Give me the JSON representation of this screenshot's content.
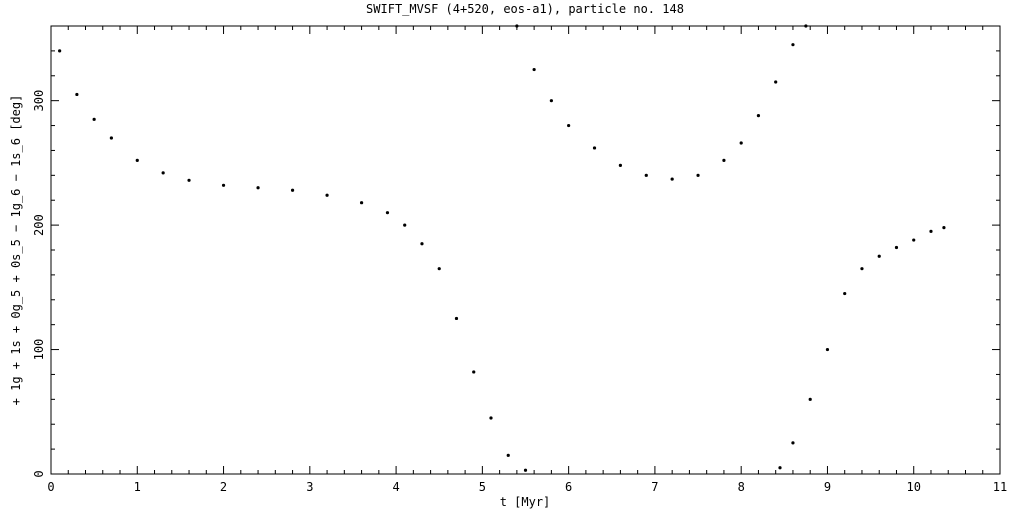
{
  "chart_data": {
    "type": "scatter",
    "title": "SWIFT_MVSF (4+520, eos-a1), particle no. 148",
    "xlabel": "t [Myr]",
    "ylabel": "+ 1g + 1s + 0g_5 + 0s_5 − 1g_6 − 1s_6 [deg]",
    "xlim": [
      0,
      11
    ],
    "ylim": [
      0,
      360
    ],
    "xticks": [
      "0",
      "1",
      "2",
      "3",
      "4",
      "5",
      "6",
      "7",
      "8",
      "9",
      "10",
      "11"
    ],
    "yticks": [
      "0",
      "100",
      "200",
      "300"
    ],
    "grid": false,
    "marker_color": "#000000",
    "series": [
      {
        "x": [
          0.1,
          0.3,
          0.5,
          0.7,
          1.0,
          1.3,
          1.6,
          2.0,
          2.4,
          2.8,
          3.2,
          3.6,
          3.9,
          4.1,
          4.3,
          4.5,
          4.7,
          4.9,
          5.1,
          5.3,
          5.5
        ],
        "y": [
          340,
          305,
          285,
          270,
          252,
          242,
          236,
          232,
          230,
          228,
          224,
          218,
          210,
          200,
          185,
          165,
          125,
          82,
          45,
          15,
          3
        ]
      },
      {
        "x": [
          5.4,
          5.6,
          5.8,
          6.0,
          6.3,
          6.6,
          6.9,
          7.2,
          7.5,
          7.8,
          8.0,
          8.2,
          8.4,
          8.6,
          8.75
        ],
        "y": [
          360,
          325,
          300,
          280,
          262,
          248,
          240,
          237,
          240,
          252,
          266,
          288,
          315,
          345,
          360
        ]
      },
      {
        "x": [
          8.45,
          8.6,
          8.8,
          9.0,
          9.2,
          9.4,
          9.6,
          9.8,
          10.0,
          10.2,
          10.35
        ],
        "y": [
          5,
          25,
          60,
          100,
          145,
          165,
          175,
          182,
          188,
          195,
          198
        ]
      }
    ]
  }
}
